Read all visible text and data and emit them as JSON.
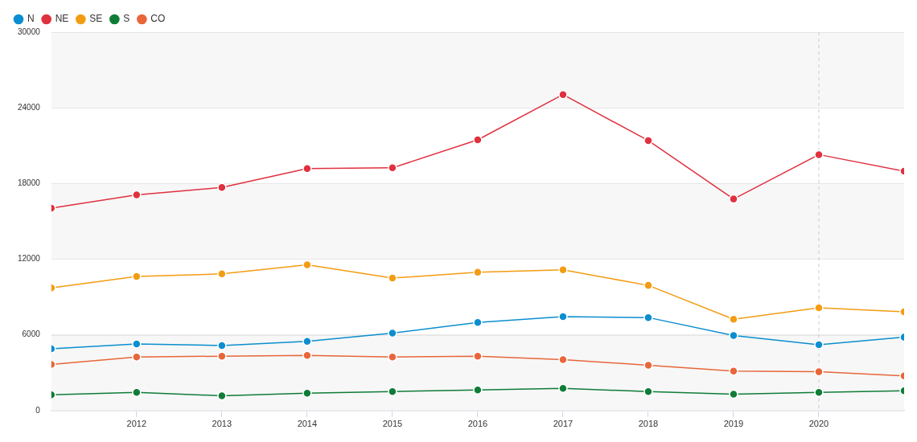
{
  "chart_data": {
    "type": "line",
    "x": [
      2011,
      2012,
      2013,
      2014,
      2015,
      2016,
      2017,
      2018,
      2019,
      2020,
      2021
    ],
    "xlim": [
      2011,
      2021
    ],
    "xticks": [
      2012,
      2013,
      2014,
      2015,
      2016,
      2017,
      2018,
      2019,
      2020
    ],
    "ylim": [
      0,
      30000
    ],
    "yticks": [
      0,
      6000,
      12000,
      18000,
      24000,
      30000
    ],
    "grid": "y",
    "legend": "top left",
    "marker": "circle",
    "line_style": "solid",
    "bands": [
      {
        "axis": "y",
        "from": 0,
        "to": 6000,
        "color": "#f7f7f7"
      },
      {
        "axis": "y",
        "from": 12000,
        "to": 18000,
        "color": "#f7f7f7"
      },
      {
        "axis": "y",
        "from": 24000,
        "to": 30000,
        "color": "#f7f7f7"
      }
    ],
    "ref_lines": [
      {
        "axis": "x",
        "value": 2020,
        "color": "#cccccc",
        "line_style": "dashed"
      }
    ],
    "series": [
      {
        "name": "N",
        "color": "#0b8ecf",
        "values": [
          4890,
          5280,
          5150,
          5480,
          6130,
          6980,
          7440,
          7370,
          5940,
          5220,
          5810
        ]
      },
      {
        "name": "NE",
        "color": "#e0313f",
        "values": [
          16050,
          17090,
          17680,
          19180,
          19240,
          21460,
          25050,
          21400,
          16770,
          20290,
          18980
        ]
      },
      {
        "name": "SE",
        "color": "#f39c12",
        "values": [
          9720,
          10630,
          10830,
          11550,
          10500,
          10960,
          11150,
          9920,
          7240,
          8150,
          7830
        ]
      },
      {
        "name": "S",
        "color": "#107c38",
        "values": [
          1240,
          1440,
          1170,
          1370,
          1500,
          1630,
          1760,
          1500,
          1300,
          1440,
          1570
        ]
      },
      {
        "name": "CO",
        "color": "#e8663a",
        "values": [
          3650,
          4240,
          4310,
          4370,
          4240,
          4310,
          4040,
          3590,
          3130,
          3070,
          2740
        ]
      }
    ]
  }
}
